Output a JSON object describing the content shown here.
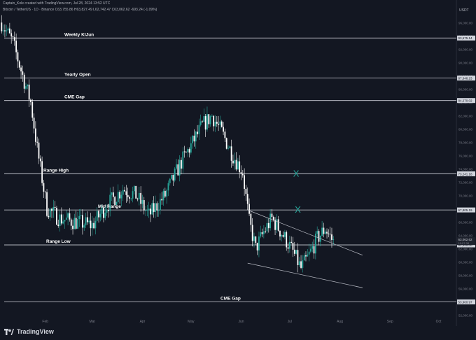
{
  "header": {
    "created_by": "Captain_Kole created with TradingView.com, Jul 28, 2024 13:52 UTC",
    "legend": "Bitcoin / TetherUS · 1D · Binance  C63,755.86  H63,827.49  L62,742.47  C63,062.62  -693.24 (-1.09%)"
  },
  "brand": {
    "name": "TradingView"
  },
  "colors": {
    "background": "#131722",
    "up": "#26a69a",
    "down": "#ffffff",
    "level_line": "#d1d4dc",
    "marker": "#26a69a"
  },
  "chart_data": {
    "type": "candlestick",
    "y_unit": "USDT",
    "ylim": [
      51500,
      97500
    ],
    "x_tick_labels": [
      "Feb",
      "Mar",
      "Apr",
      "May",
      "Jun",
      "Jul",
      "Aug",
      "Sep",
      "Oct"
    ],
    "y_ticks": [
      52000,
      54000,
      56000,
      58000,
      60000,
      62000,
      64000,
      66000,
      68000,
      70000,
      72000,
      74000,
      76000,
      78000,
      80000,
      82000,
      84000,
      86000,
      88000,
      90000,
      92000,
      94000,
      96000
    ],
    "y_tick_labels": [
      "52,000.00",
      "54,000.00",
      "56,000.00",
      "58,000.00",
      "60,000.00",
      "62,000.00",
      "64,000.00",
      "66,000.00",
      "68,000.00",
      "70,000.00",
      "72,000.00",
      "74,000.00",
      "76,000.00",
      "78,000.00",
      "80,000.00",
      "82,000.00",
      "84,000.00",
      "86,000.00",
      "88,000.00",
      "90,000.00",
      "92,000.00",
      "94,000.00",
      "96,000.00"
    ],
    "levels": [
      {
        "label": "Weekly KIJun",
        "price": 93675.14,
        "price_label": "93,675.14"
      },
      {
        "label": "Yearly Open",
        "price": 87648.23,
        "price_label": "87,648.23"
      },
      {
        "label": "CME Gap",
        "price": 84270.02,
        "price_label": "84,270.02"
      },
      {
        "label": "Range High",
        "price": 73241.18,
        "price_label": "73,241.18"
      },
      {
        "label": "Mid Range",
        "price": 67805.19,
        "price_label": "67,805.19"
      },
      {
        "label": "Range Low",
        "price": 62545.0,
        "price_label": "62,545.00"
      },
      {
        "label": "CME Gap",
        "price": 53960.97,
        "price_label": "53,960.97"
      }
    ],
    "current_price": {
      "price": 63062.62,
      "label": "63,062.62",
      "countdown": "10:07:38"
    },
    "trendlines": [
      {
        "from": [
          "2024-06-05",
          67800
        ],
        "to": [
          "2024-08-15",
          61000
        ]
      },
      {
        "from": [
          "2024-06-05",
          59800
        ],
        "to": [
          "2024-08-15",
          56100
        ]
      }
    ],
    "markers": [
      {
        "symbol": "X",
        "date": "2024-07-05",
        "price": 73241
      },
      {
        "symbol": "X",
        "date": "2024-07-06",
        "price": 67805
      }
    ],
    "x_range": [
      "2024-01-04",
      "2024-10-12"
    ],
    "candles_monthly_path": [
      {
        "date": "2024-01-05",
        "price": 96000
      },
      {
        "date": "2024-01-12",
        "price": 93000
      },
      {
        "date": "2024-01-18",
        "price": 88000
      },
      {
        "date": "2024-01-23",
        "price": 84000
      },
      {
        "date": "2024-01-27",
        "price": 77000
      },
      {
        "date": "2024-02-02",
        "price": 68000
      },
      {
        "date": "2024-02-10",
        "price": 66500
      },
      {
        "date": "2024-02-20",
        "price": 66000
      },
      {
        "date": "2024-03-01",
        "price": 65500
      },
      {
        "date": "2024-03-10",
        "price": 68500
      },
      {
        "date": "2024-03-20",
        "price": 71000
      },
      {
        "date": "2024-03-28",
        "price": 70000
      },
      {
        "date": "2024-04-05",
        "price": 67000
      },
      {
        "date": "2024-04-15",
        "price": 70000
      },
      {
        "date": "2024-04-25",
        "price": 75000
      },
      {
        "date": "2024-05-01",
        "price": 77500
      },
      {
        "date": "2024-05-08",
        "price": 80500
      },
      {
        "date": "2024-05-14",
        "price": 82000
      },
      {
        "date": "2024-05-20",
        "price": 79500
      },
      {
        "date": "2024-05-27",
        "price": 76000
      },
      {
        "date": "2024-06-02",
        "price": 73500
      },
      {
        "date": "2024-06-06",
        "price": 66000
      },
      {
        "date": "2024-06-10",
        "price": 62000
      },
      {
        "date": "2024-06-15",
        "price": 64500
      },
      {
        "date": "2024-06-20",
        "price": 66500
      },
      {
        "date": "2024-06-27",
        "price": 64000
      },
      {
        "date": "2024-07-03",
        "price": 61500
      },
      {
        "date": "2024-07-08",
        "price": 59000
      },
      {
        "date": "2024-07-13",
        "price": 61000
      },
      {
        "date": "2024-07-18",
        "price": 63500
      },
      {
        "date": "2024-07-23",
        "price": 65000
      },
      {
        "date": "2024-07-28",
        "price": 63000
      }
    ]
  }
}
